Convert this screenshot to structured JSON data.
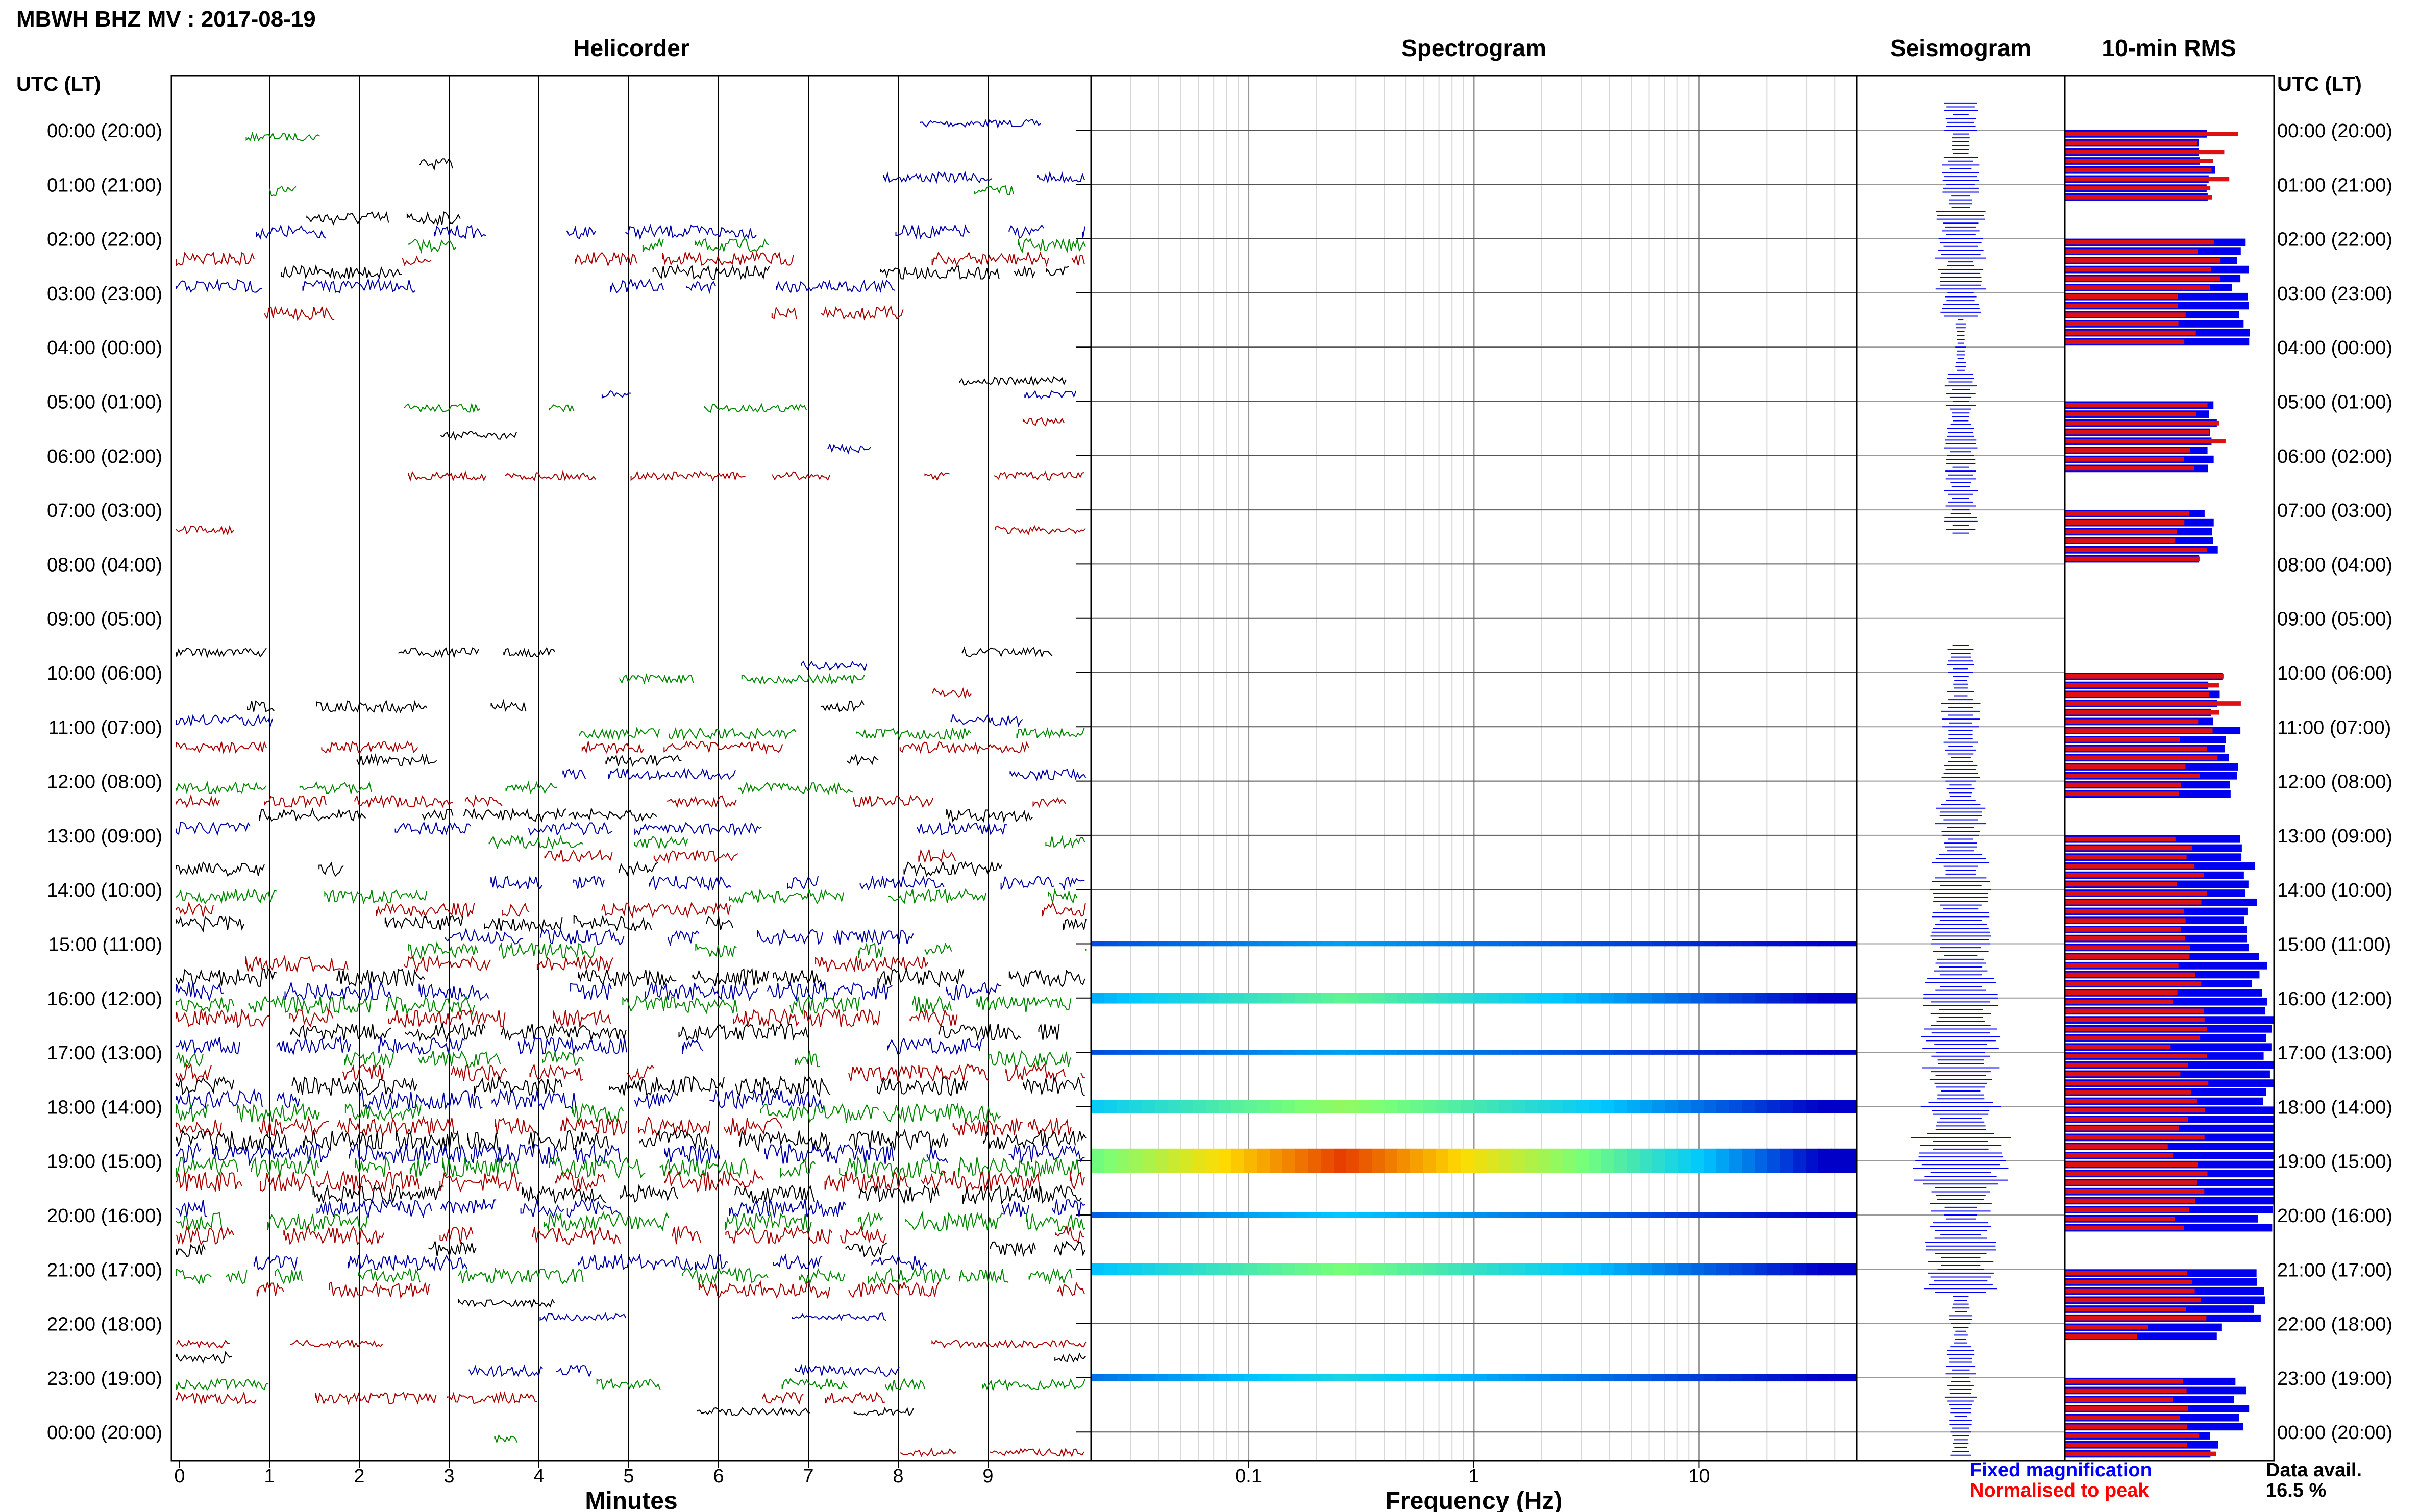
{
  "header": {
    "station_title": "MBWH BHZ MV : 2017-08-19",
    "tz_label_left": "UTC (LT)",
    "tz_label_right": "UTC (LT)"
  },
  "panels": {
    "helicorder": "Helicorder",
    "spectrogram": "Spectrogram",
    "seismogram": "Seismogram",
    "rms": "10-min RMS"
  },
  "axes": {
    "x_helicorder_label": "Minutes",
    "x_spectrogram_label": "Frequency (Hz)",
    "minute_ticks": [
      "0",
      "1",
      "2",
      "3",
      "4",
      "5",
      "6",
      "7",
      "8",
      "9"
    ],
    "freq_ticks": [
      "0.1",
      "1",
      "10"
    ],
    "freq_log": true
  },
  "legend": {
    "fixed": "Fixed magnification",
    "normalised": "Normalised to peak",
    "fixed_color": "#0000ff",
    "normalised_color": "#ff0000",
    "data_avail_label": "Data avail.",
    "data_avail_value": "16.5 %"
  },
  "chart_data": {
    "type": "heatmap",
    "hour_labels": [
      "00:00 (20:00)",
      "01:00 (21:00)",
      "02:00 (22:00)",
      "03:00 (23:00)",
      "04:00 (00:00)",
      "05:00 (01:00)",
      "06:00 (02:00)",
      "07:00 (03:00)",
      "08:00 (04:00)",
      "09:00 (05:00)",
      "10:00 (06:00)",
      "11:00 (07:00)",
      "12:00 (08:00)",
      "13:00 (09:00)",
      "14:00 (10:00)",
      "15:00 (11:00)",
      "16:00 (12:00)",
      "17:00 (13:00)",
      "18:00 (14:00)",
      "19:00 (15:00)",
      "20:00 (16:00)",
      "21:00 (17:00)",
      "22:00 (18:00)",
      "23:00 (19:00)",
      "00:00 (20:00)"
    ],
    "trace_colors": [
      "#000000",
      "#0000aa",
      "#008800",
      "#aa0000"
    ],
    "helicorder_activity": [
      0.1,
      0.3,
      0.5,
      0.5,
      0.0,
      0.15,
      0.15,
      0.15,
      0.0,
      0.0,
      0.2,
      0.35,
      0.35,
      0.45,
      0.55,
      0.65,
      0.8,
      0.75,
      0.9,
      1.0,
      0.85,
      0.65,
      0.1,
      0.35,
      0.1
    ],
    "spectrogram_strength": [
      0,
      0,
      0,
      0,
      0,
      0,
      0,
      0,
      0,
      0,
      0,
      0,
      0,
      0,
      0,
      0.2,
      0.45,
      0.2,
      0.55,
      1.0,
      0.25,
      0.5,
      0,
      0.3,
      0
    ],
    "seismogram_width": [
      0.3,
      0.35,
      0.45,
      0.5,
      0.1,
      0.3,
      0.3,
      0.3,
      0,
      0,
      0.25,
      0.35,
      0.35,
      0.45,
      0.55,
      0.6,
      0.75,
      0.7,
      0.75,
      0.9,
      0.55,
      0.7,
      0.2,
      0.3,
      0.2
    ],
    "rms_fixed": [
      0.05,
      0.05,
      0.45,
      0.5,
      0,
      0.15,
      0.1,
      0.1,
      0,
      0,
      0.2,
      0.4,
      0.3,
      0.55,
      0.6,
      0.7,
      0.85,
      0.85,
      0.9,
      0.95,
      0.8,
      0.65,
      0.15,
      0.5,
      0.1
    ],
    "rms_normalised": [
      0.8,
      0.7,
      0.75,
      0.65,
      0,
      0.75,
      0.65,
      0.65,
      0,
      0,
      0.85,
      0.7,
      0.6,
      0.7,
      0.65,
      0.7,
      0.65,
      0.7,
      0.65,
      0.7,
      0.6,
      0.65,
      0.45,
      0.6,
      0.7
    ],
    "rms_gap_rows": [
      1,
      4,
      6,
      8,
      9,
      12,
      20,
      22
    ],
    "data_availability_percent": 16.5
  }
}
